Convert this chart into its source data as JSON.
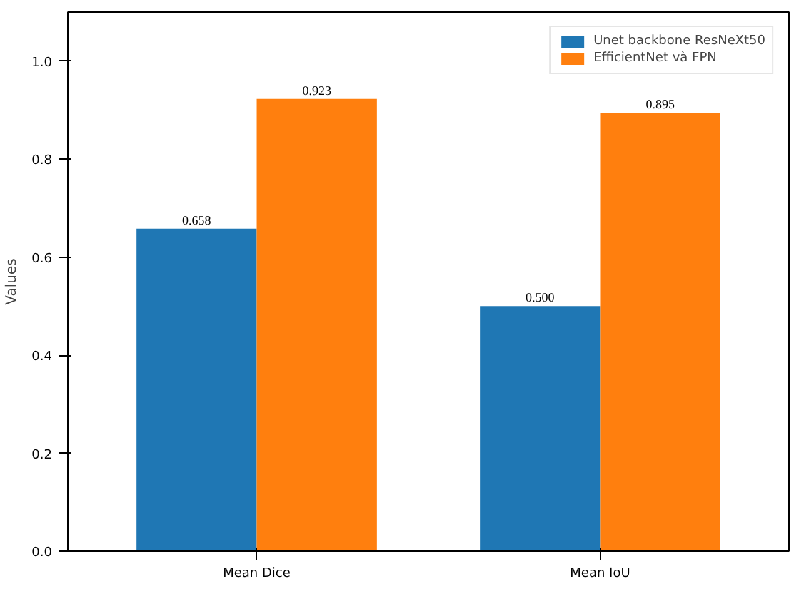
{
  "chart_data": {
    "type": "bar",
    "ylabel": "Values",
    "categories": [
      "Mean Dice",
      "Mean IoU"
    ],
    "series": [
      {
        "name": "Unet backbone ResNeXt50",
        "color": "#1f77b4",
        "values": [
          0.658,
          0.5
        ],
        "value_labels": [
          "0.658",
          "0.500"
        ]
      },
      {
        "name": "EfficientNet và FPN",
        "color": "#ff7f0e",
        "values": [
          0.923,
          0.895
        ],
        "value_labels": [
          "0.923",
          "0.895"
        ]
      }
    ],
    "ylim": [
      0,
      1.1
    ],
    "yticks": [
      {
        "value": 0,
        "label": "0.0"
      },
      {
        "value": 0.2,
        "label": "0.2"
      },
      {
        "value": 0.4,
        "label": "0.4"
      },
      {
        "value": 0.6,
        "label": "0.6"
      },
      {
        "value": 0.8,
        "label": "0.8"
      },
      {
        "value": 1.0,
        "label": "1.0"
      }
    ],
    "grid": false,
    "legend": "top right"
  }
}
